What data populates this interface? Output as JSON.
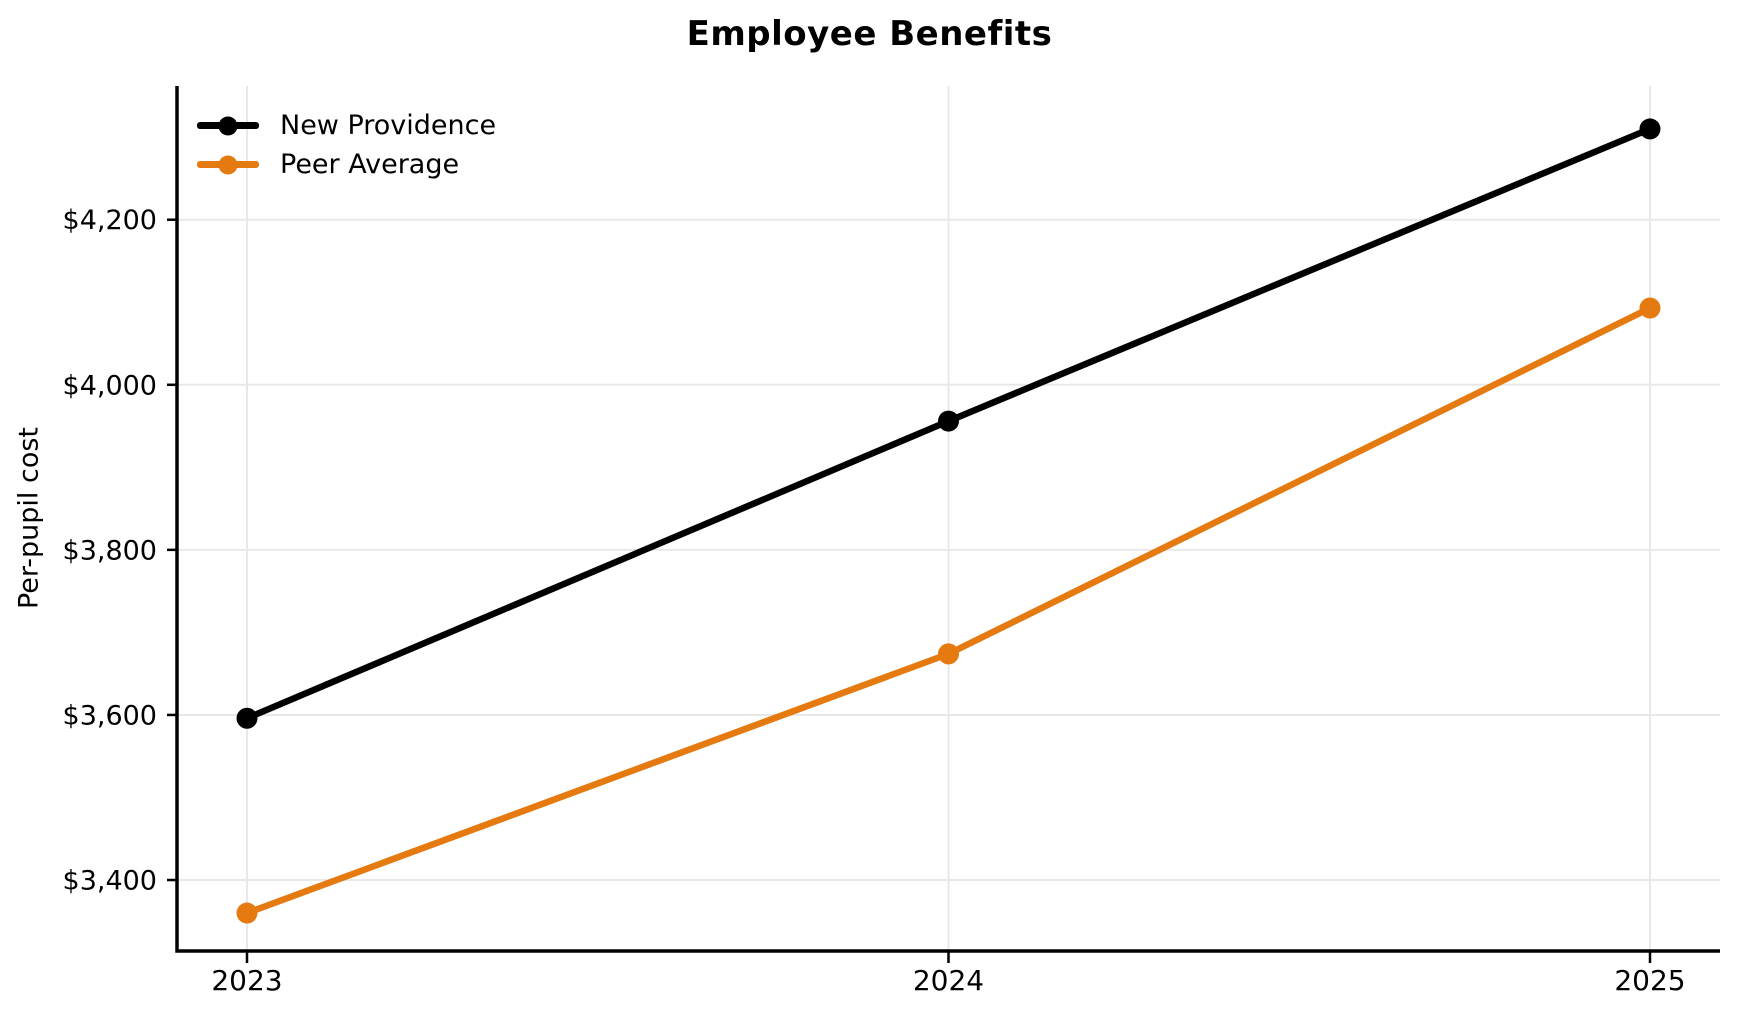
{
  "title": "Employee Benefits",
  "y_axis_label": "Per-pupil cost",
  "legend": {
    "items": [
      {
        "label": "New Providence",
        "color": "#000000"
      },
      {
        "label": "Peer Average",
        "color": "#E57A10"
      }
    ]
  },
  "chart_data": {
    "type": "line",
    "x": [
      "2023",
      "2024",
      "2025"
    ],
    "series": [
      {
        "name": "New Providence",
        "color": "#000000",
        "values": [
          3596,
          3956,
          4310
        ]
      },
      {
        "name": "Peer Average",
        "color": "#E57A10",
        "values": [
          3360,
          3674,
          4093
        ]
      }
    ],
    "title": "Employee Benefits",
    "xlabel": "",
    "ylabel": "Per-pupil cost",
    "yticks": [
      3400,
      3600,
      3800,
      4000,
      4200
    ],
    "ytick_labels": [
      "$3,400",
      "$3,600",
      "$3,800",
      "$4,000",
      "$4,200"
    ],
    "xtick_labels": [
      "2023",
      "2024",
      "2025"
    ],
    "ylim": [
      3314,
      4362
    ],
    "grid": true,
    "grid_color": "#E8E8E8",
    "legend_position": "upper left"
  }
}
